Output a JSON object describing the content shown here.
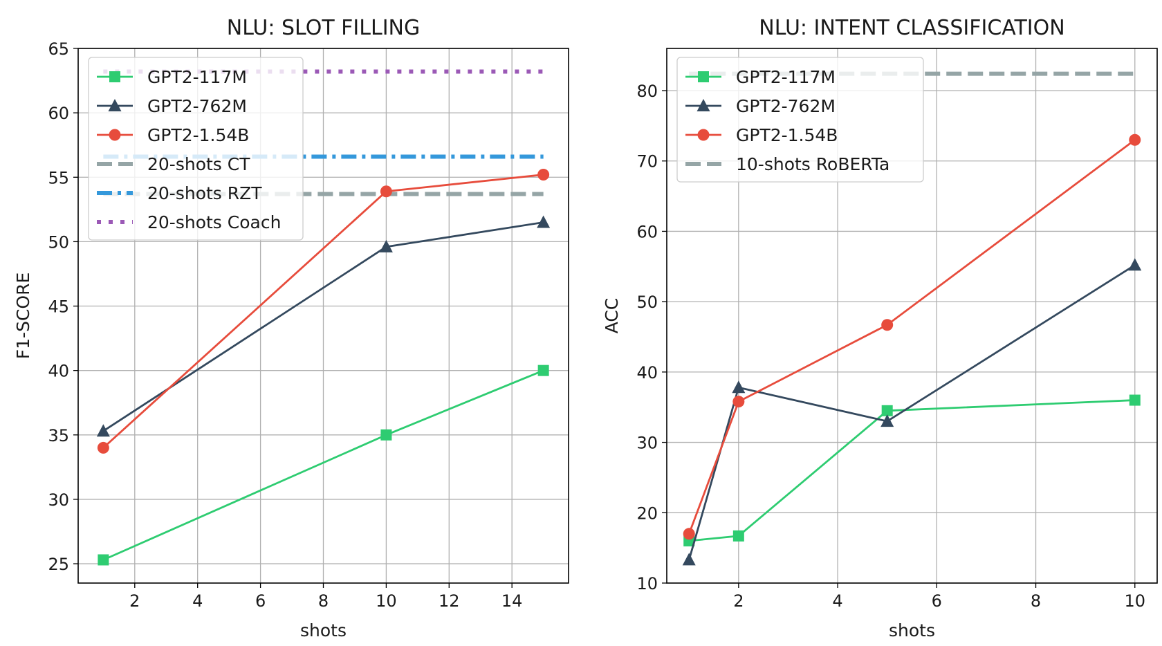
{
  "chart_data": [
    {
      "type": "line",
      "title": "NLU: SLOT FILLING",
      "xlabel": "shots",
      "ylabel": "F1-SCORE",
      "xlim": [
        0.2,
        15.8
      ],
      "ylim": [
        23.5,
        65
      ],
      "xticks": [
        2,
        4,
        6,
        8,
        10,
        12,
        14
      ],
      "yticks": [
        25,
        30,
        35,
        40,
        45,
        50,
        55,
        60,
        65
      ],
      "grid": true,
      "legend_position": "top-left",
      "x": [
        1,
        10,
        15
      ],
      "series": [
        {
          "name": "GPT2-117M",
          "values": [
            25.3,
            35.0,
            40.0
          ],
          "color": "#2ecc71",
          "marker": "square"
        },
        {
          "name": "GPT2-762M",
          "values": [
            35.3,
            49.6,
            51.5
          ],
          "color": "#34495e",
          "marker": "triangle"
        },
        {
          "name": "GPT2-1.54B",
          "values": [
            34.0,
            53.9,
            55.2
          ],
          "color": "#e74c3c",
          "marker": "circle"
        }
      ],
      "baselines": [
        {
          "name": "20-shots CT",
          "value": 53.7,
          "color": "#95a5a6",
          "style": "dashed"
        },
        {
          "name": "20-shots RZT",
          "value": 56.6,
          "color": "#3498db",
          "style": "dashdot"
        },
        {
          "name": "20-shots Coach",
          "value": 63.2,
          "color": "#9b59b6",
          "style": "dotted"
        }
      ]
    },
    {
      "type": "line",
      "title": "NLU: INTENT CLASSIFICATION",
      "xlabel": "shots",
      "ylabel": "ACC",
      "xlim": [
        0.55,
        10.45
      ],
      "ylim": [
        10,
        86
      ],
      "xticks": [
        2,
        4,
        6,
        8,
        10
      ],
      "yticks": [
        10,
        20,
        30,
        40,
        50,
        60,
        70,
        80
      ],
      "grid": true,
      "legend_position": "top-left",
      "x": [
        1,
        2,
        5,
        10
      ],
      "series": [
        {
          "name": "GPT2-117M",
          "values": [
            16.0,
            16.7,
            34.5,
            36.0
          ],
          "color": "#2ecc71",
          "marker": "square"
        },
        {
          "name": "GPT2-762M",
          "values": [
            13.3,
            37.8,
            33.0,
            55.2
          ],
          "color": "#34495e",
          "marker": "triangle"
        },
        {
          "name": "GPT2-1.54B",
          "values": [
            17.0,
            35.8,
            46.7,
            73.0
          ],
          "color": "#e74c3c",
          "marker": "circle"
        }
      ],
      "baselines": [
        {
          "name": "10-shots RoBERTa",
          "value": 82.4,
          "color": "#95a5a6",
          "style": "dashed"
        }
      ]
    }
  ]
}
